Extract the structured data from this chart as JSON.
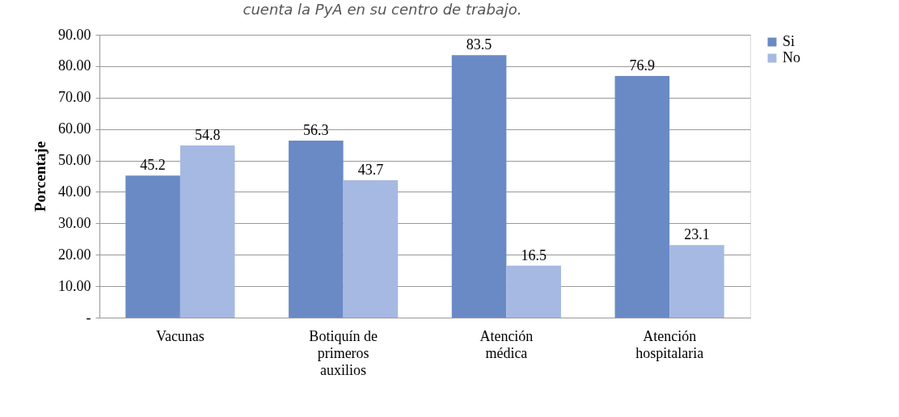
{
  "chart_data": {
    "type": "bar",
    "annotations": [
      "cuenta la PyA en su centro de trabajo."
    ],
    "ylabel": "Porcentaje",
    "categories": [
      "Vacunas",
      "Botiquín de\nprimeros\nauxilios",
      "Atención\nmédica",
      "Atención\nhospitalaria"
    ],
    "series": [
      {
        "name": "Si",
        "color": "#6a8ac6",
        "values": [
          45.2,
          56.3,
          83.5,
          76.9
        ]
      },
      {
        "name": "No",
        "color": "#a6b9e2",
        "values": [
          54.8,
          43.7,
          16.5,
          23.1
        ]
      }
    ],
    "ylim": [
      0,
      90
    ],
    "yticks": [
      {
        "value": 0,
        "label": "-"
      },
      {
        "value": 10,
        "label": "10.00"
      },
      {
        "value": 20,
        "label": "20.00"
      },
      {
        "value": 30,
        "label": "30.00"
      },
      {
        "value": 40,
        "label": "40.00"
      },
      {
        "value": 50,
        "label": "50.00"
      },
      {
        "value": 60,
        "label": "60.00"
      },
      {
        "value": 70,
        "label": "70.00"
      },
      {
        "value": 80,
        "label": "80.00"
      },
      {
        "value": 90,
        "label": "90.00"
      }
    ],
    "grid": "y",
    "legend": "right",
    "data_labels": true
  }
}
